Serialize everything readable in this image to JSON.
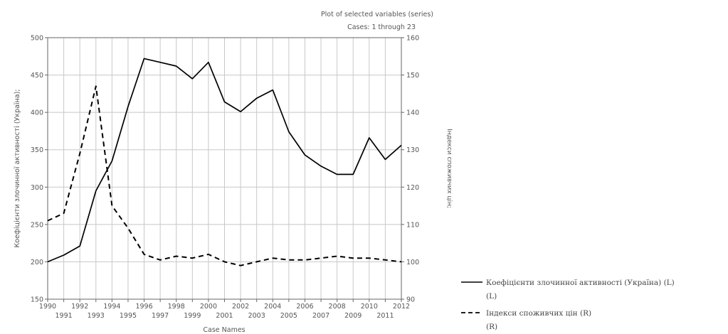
{
  "chart_data": {
    "type": "line",
    "title": "Plot of selected variables (series)",
    "subtitle": "Cases: 1 through 23",
    "xlabel": "Case Names",
    "ylabel_left": "Коефіцієнти злочинної активності (Україна);",
    "ylabel_right": "Індекси споживчих цін;",
    "x": [
      1990,
      1991,
      1992,
      1993,
      1994,
      1995,
      1996,
      1997,
      1998,
      1999,
      2000,
      2001,
      2002,
      2003,
      2004,
      2005,
      2006,
      2007,
      2008,
      2009,
      2010,
      2011,
      2012
    ],
    "ylim_left": [
      150,
      500
    ],
    "ylim_right": [
      90,
      160
    ],
    "yticks_left": [
      150,
      200,
      250,
      300,
      350,
      400,
      450,
      500
    ],
    "yticks_right": [
      90,
      100,
      110,
      120,
      130,
      140,
      150,
      160
    ],
    "grid": true,
    "legend_position": "bottom-right",
    "series": [
      {
        "name": "Коефіцієнти злочинної активності (Україна) (L)",
        "axis_note": "(L)",
        "axis": "left",
        "style": "solid",
        "values": [
          200,
          209,
          221,
          295,
          335,
          408,
          472,
          467,
          462,
          445,
          467,
          414,
          401,
          419,
          430,
          374,
          343,
          328,
          317,
          317,
          366,
          337,
          356
        ]
      },
      {
        "name": "Індекси споживчих цін (R)",
        "axis_note": "(R)",
        "axis": "right",
        "style": "dashed",
        "values": [
          111,
          113,
          129,
          147,
          115,
          109,
          102,
          100.5,
          101.5,
          101,
          102,
          100,
          99,
          100,
          101,
          100.5,
          100.5,
          101,
          101.5,
          101,
          101,
          100.5,
          100
        ]
      }
    ]
  },
  "colors": {
    "line": "#000000",
    "grid": "#c8c8c8",
    "axis": "#666666",
    "text": "#555555"
  }
}
